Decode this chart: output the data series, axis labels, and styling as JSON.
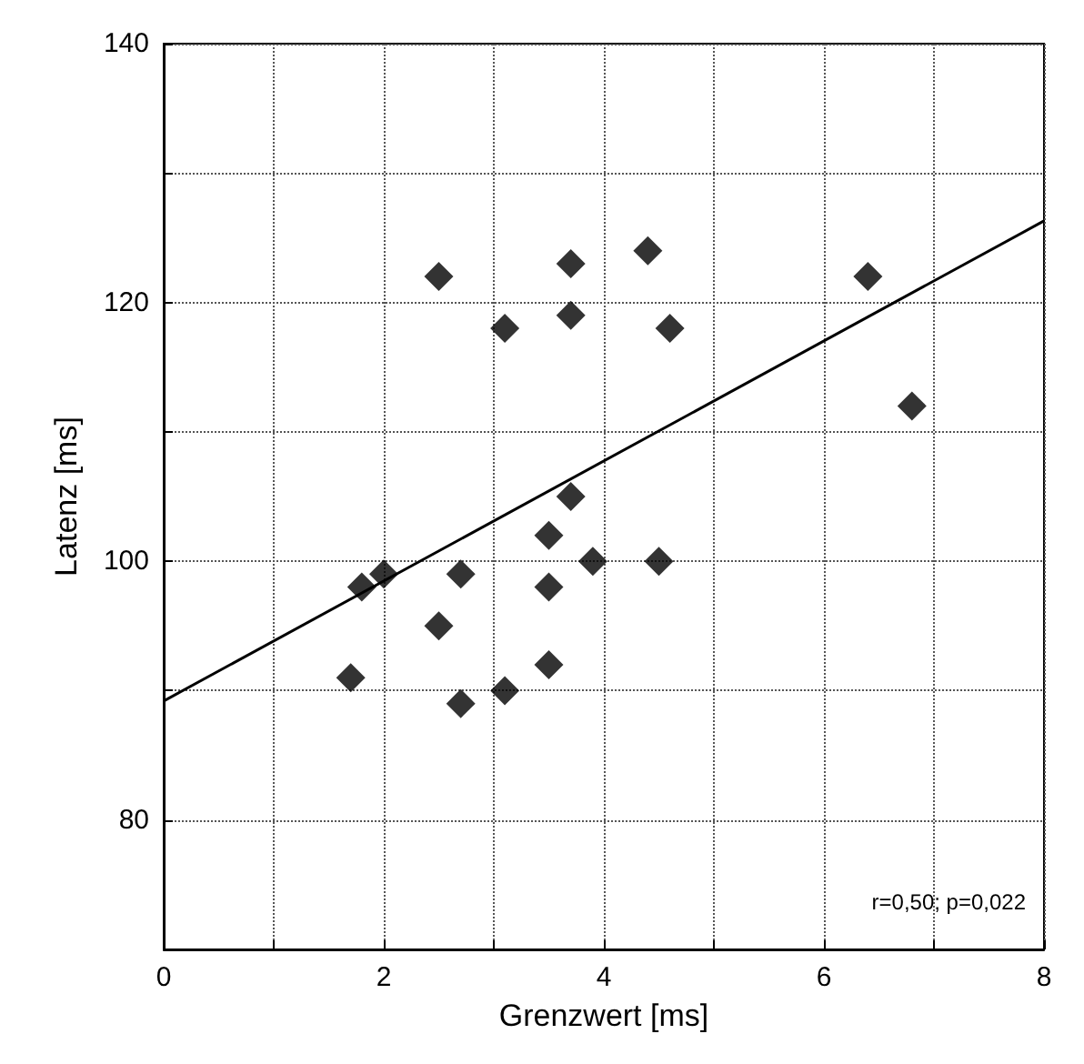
{
  "chart_data": {
    "type": "scatter",
    "xlabel": "Grenzwert [ms]",
    "ylabel": "Latenz [ms]",
    "xlim": [
      0,
      8
    ],
    "xticks": [
      0,
      {
        "value": 1,
        "label": null
      },
      2,
      {
        "value": 3,
        "label": null
      },
      4,
      {
        "value": 5,
        "label": null
      },
      6,
      {
        "value": 7,
        "label": null
      },
      8
    ],
    "ylim": [
      70,
      140
    ],
    "yticks": [
      {
        "value": 70,
        "label": null
      },
      80,
      {
        "value": 90,
        "label": null
      },
      100,
      {
        "value": 110,
        "label": null
      },
      120,
      {
        "value": 130,
        "label": null
      },
      140
    ],
    "grid": true,
    "marker": "diamond",
    "annotations": [
      "r=0,50; p=0,022"
    ],
    "series": [
      {
        "color": "#000000",
        "x": [
          1.7,
          1.8,
          2.0,
          2.5,
          2.5,
          2.7,
          2.7,
          3.1,
          3.1,
          3.5,
          3.5,
          3.5,
          3.7,
          3.7,
          3.7,
          3.9,
          4.4,
          4.5,
          4.6,
          6.4,
          6.8
        ],
        "values": [
          91,
          98,
          99,
          122,
          95,
          99,
          89,
          118,
          90,
          98,
          102,
          92,
          123,
          119,
          105,
          100,
          124,
          100,
          118,
          122,
          112
        ]
      },
      {
        "type": "line",
        "color": "#000000",
        "x": [
          0,
          8
        ],
        "values": [
          89.2,
          126.3
        ],
        "marker": "none",
        "line_style": "solid"
      }
    ]
  }
}
